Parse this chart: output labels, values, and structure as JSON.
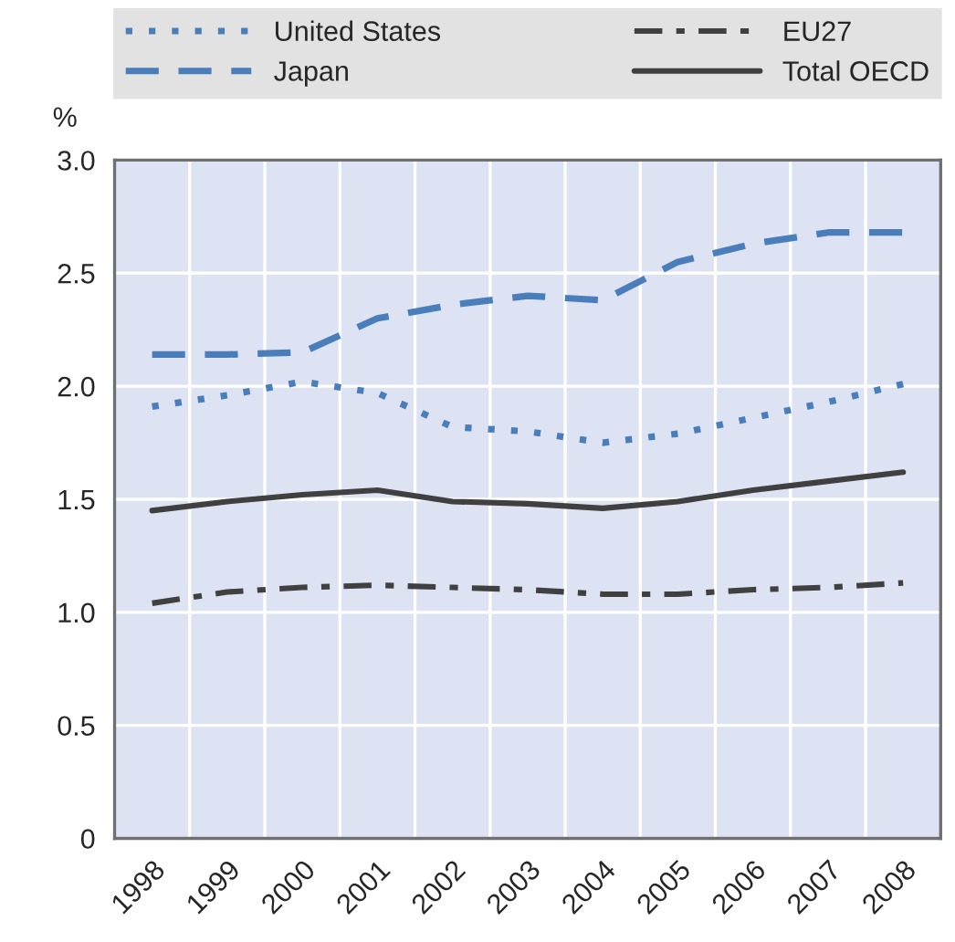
{
  "chart_data": {
    "type": "line",
    "ylabel": "%",
    "categories": [
      "1998",
      "1999",
      "2000",
      "2001",
      "2002",
      "2003",
      "2004",
      "2005",
      "2006",
      "2007",
      "2008"
    ],
    "series": [
      {
        "name": "United States",
        "color": "#4a7ebb",
        "line_style": "dotted",
        "values": [
          1.91,
          1.96,
          2.02,
          1.97,
          1.82,
          1.8,
          1.75,
          1.79,
          1.86,
          1.93,
          2.01
        ]
      },
      {
        "name": "Japan",
        "color": "#4a7ebb",
        "line_style": "dashed",
        "values": [
          2.14,
          2.14,
          2.15,
          2.3,
          2.36,
          2.4,
          2.38,
          2.55,
          2.63,
          2.68,
          2.68
        ]
      },
      {
        "name": "EU27",
        "color": "#404040",
        "line_style": "dashdot",
        "values": [
          1.04,
          1.09,
          1.11,
          1.12,
          1.11,
          1.1,
          1.08,
          1.08,
          1.1,
          1.11,
          1.13
        ]
      },
      {
        "name": "Total OECD",
        "color": "#404040",
        "line_style": "solid",
        "values": [
          1.45,
          1.49,
          1.52,
          1.54,
          1.49,
          1.48,
          1.46,
          1.49,
          1.54,
          1.58,
          1.62
        ]
      }
    ],
    "ylim": [
      0,
      3.0
    ],
    "yticks": [
      {
        "value": 0,
        "label": "0"
      },
      {
        "value": 0.5,
        "label": "0.5"
      },
      {
        "value": 1.0,
        "label": "1.0"
      },
      {
        "value": 1.5,
        "label": "1.5"
      },
      {
        "value": 2.0,
        "label": "2.0"
      },
      {
        "value": 2.5,
        "label": "2.5"
      },
      {
        "value": 3.0,
        "label": "3.0"
      }
    ],
    "grid": true,
    "legend": "top"
  }
}
